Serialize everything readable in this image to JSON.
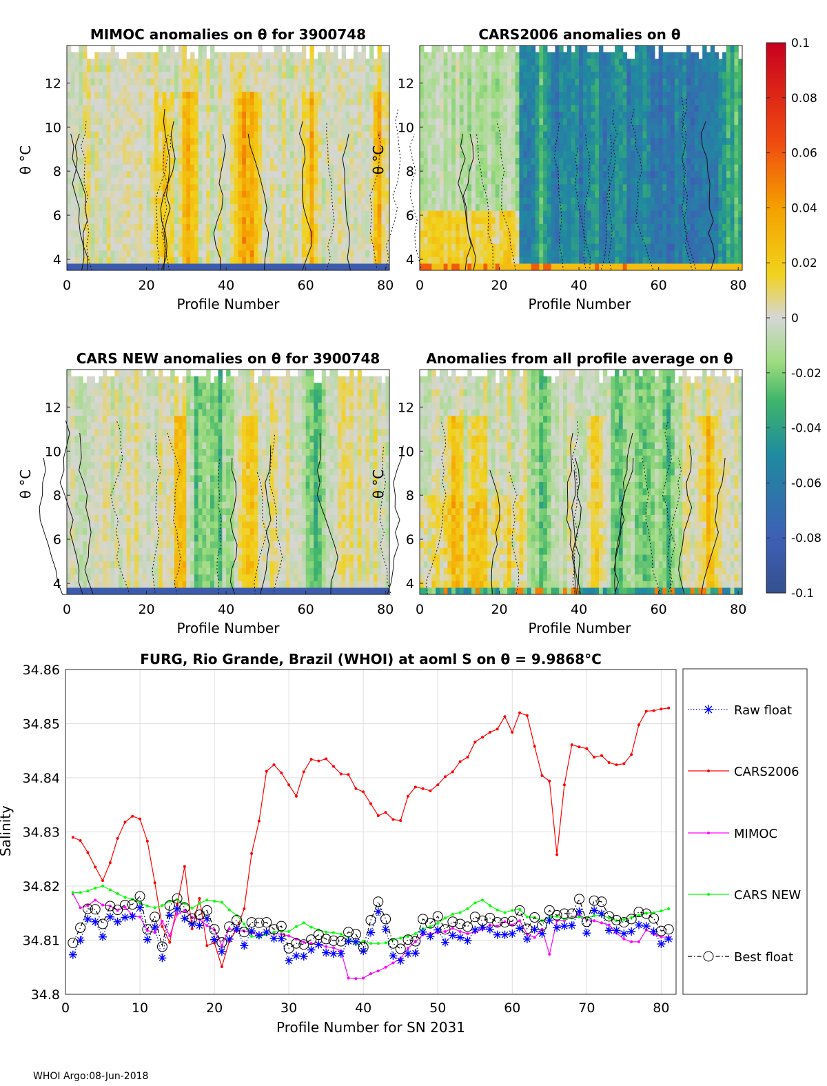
{
  "footer": "WHOI Argo:08-Jun-2018",
  "colorbar": {
    "ticks": [
      "0.1",
      "0.08",
      "0.06",
      "0.04",
      "0.02",
      "0",
      "-0.02",
      "-0.04",
      "-0.06",
      "-0.08",
      "-0.1"
    ],
    "range": [
      -0.1,
      0.1
    ],
    "colors": [
      "#c8001e",
      "#f04a10",
      "#f5a000",
      "#f1d21c",
      "#d6d6d6",
      "#9fdc7f",
      "#3fb56a",
      "#1f8aa0",
      "#3e5fb5",
      "#34508f"
    ]
  },
  "chart_data": [
    {
      "type": "heatmap",
      "title": "MIMOC anomalies on θ  for 3900748",
      "xlabel": "Profile Number",
      "ylabel": "θ °C",
      "xlim": [
        0,
        81
      ],
      "ylim": [
        3.5,
        13.7
      ],
      "xticks": [
        "0",
        "20",
        "40",
        "60",
        "80"
      ],
      "yticks": [
        "4",
        "6",
        "8",
        "10",
        "12"
      ],
      "seed": 11,
      "bias": 0.1,
      "green_cols": [],
      "yellow_cols": [
        24,
        30,
        44,
        46,
        61,
        78
      ],
      "bottom_band": "blue"
    },
    {
      "type": "heatmap",
      "title": "CARS2006 anomalies on θ",
      "xlabel": "Profile Number",
      "ylabel": "θ °C",
      "xlim": [
        0,
        81
      ],
      "ylim": [
        3.5,
        13.7
      ],
      "xticks": [
        "0",
        "20",
        "40",
        "60",
        "80"
      ],
      "yticks": [
        "4",
        "6",
        "8",
        "10",
        "12"
      ],
      "seed": 23,
      "bias": -0.4,
      "green_cols": [
        26,
        34,
        40,
        46,
        52,
        58,
        62,
        66,
        70,
        74
      ],
      "yellow_cols": [],
      "bottom_band": "yellow"
    },
    {
      "type": "heatmap",
      "title": "CARS NEW anomalies on θ for 3900748",
      "xlabel": "Profile Number",
      "ylabel": "θ °C",
      "xlim": [
        0,
        81
      ],
      "ylim": [
        3.5,
        13.7
      ],
      "xticks": [
        "0",
        "20",
        "40",
        "60",
        "80"
      ],
      "yticks": [
        "4",
        "6",
        "8",
        "10",
        "12"
      ],
      "seed": 37,
      "bias": 0.05,
      "green_cols": [
        33,
        38,
        62
      ],
      "yellow_cols": [
        28,
        45
      ],
      "bottom_band": "blue"
    },
    {
      "type": "heatmap",
      "title": "Anomalies from all profile average on θ",
      "xlabel": "Profile Number",
      "ylabel": "θ °C",
      "xlim": [
        0,
        81
      ],
      "ylim": [
        3.5,
        13.7
      ],
      "xticks": [
        "0",
        "20",
        "40",
        "60",
        "80"
      ],
      "yticks": [
        "4",
        "6",
        "8",
        "10",
        "12"
      ],
      "seed": 53,
      "bias": 0.0,
      "green_cols": [
        30,
        50,
        56,
        62
      ],
      "yellow_cols": [
        8,
        14,
        44,
        72
      ],
      "bottom_band": "mixed"
    },
    {
      "type": "line",
      "title": "FURG, Rio Grande, Brazil (WHOI) at aoml S on θ = 9.9868°C",
      "xlabel": "Profile Number for SN 2031",
      "ylabel": "Salinity",
      "xlim": [
        0,
        82
      ],
      "ylim": [
        34.8,
        34.86
      ],
      "xticks": [
        "0",
        "10",
        "20",
        "30",
        "40",
        "50",
        "60",
        "70",
        "80"
      ],
      "yticks": [
        "34.8",
        "34.81",
        "34.82",
        "34.83",
        "34.84",
        "34.85",
        "34.86"
      ],
      "x": [
        1,
        2,
        3,
        4,
        5,
        6,
        7,
        8,
        9,
        10,
        11,
        12,
        13,
        14,
        15,
        16,
        17,
        18,
        19,
        20,
        21,
        22,
        23,
        24,
        25,
        26,
        27,
        28,
        29,
        30,
        31,
        32,
        33,
        34,
        35,
        36,
        37,
        38,
        39,
        40,
        41,
        42,
        43,
        44,
        45,
        46,
        47,
        48,
        49,
        50,
        51,
        52,
        53,
        54,
        55,
        56,
        57,
        58,
        59,
        60,
        61,
        62,
        63,
        64,
        65,
        66,
        67,
        68,
        69,
        70,
        71,
        72,
        73,
        74,
        75,
        76,
        77,
        78,
        79,
        80,
        81
      ],
      "series": [
        {
          "name": "Raw float",
          "color": "#0000ff",
          "marker": "star",
          "style": "dotted",
          "values": [
            34.8073,
            34.81,
            34.8139,
            34.8134,
            34.8106,
            34.8143,
            34.8134,
            34.8142,
            34.8144,
            34.816,
            34.8101,
            34.8124,
            34.8067,
            34.8146,
            34.8158,
            34.814,
            34.813,
            34.8127,
            34.814,
            34.8101,
            34.8079,
            34.8102,
            34.8121,
            34.809,
            34.8117,
            34.8109,
            34.8115,
            34.8103,
            34.8103,
            34.8062,
            34.8071,
            34.807,
            34.8082,
            34.8092,
            34.8077,
            34.8075,
            34.8075,
            34.8098,
            34.8097,
            34.808,
            34.8114,
            34.8153,
            34.812,
            34.8071,
            34.8062,
            34.8075,
            34.8076,
            34.8115,
            34.8107,
            34.8119,
            34.8096,
            34.8109,
            34.8105,
            34.8099,
            34.8119,
            34.8124,
            34.812,
            34.811,
            34.811,
            34.8112,
            34.8122,
            34.8102,
            34.812,
            34.8112,
            34.8137,
            34.8123,
            34.8126,
            34.8127,
            34.8153,
            34.8113,
            34.8155,
            34.8149,
            34.8118,
            34.8118,
            34.8112,
            34.8116,
            34.8128,
            34.8126,
            34.8116,
            34.8093,
            34.8102
          ]
        },
        {
          "name": "CARS2006",
          "color": "#ff0000",
          "marker": "dot",
          "style": "solid",
          "values": [
            34.829,
            34.8284,
            34.8262,
            34.8235,
            34.821,
            34.8243,
            34.8288,
            34.8318,
            34.8329,
            34.8324,
            34.8283,
            34.8206,
            34.8125,
            34.8096,
            34.8165,
            34.8236,
            34.8121,
            34.8177,
            34.809,
            34.8095,
            34.8051,
            34.8098,
            34.812,
            34.8158,
            34.826,
            34.832,
            34.8412,
            34.8424,
            34.8409,
            34.8387,
            34.8366,
            34.8411,
            34.8434,
            34.8431,
            34.8435,
            34.8421,
            34.8407,
            34.8406,
            34.838,
            34.8374,
            34.8352,
            34.833,
            34.8336,
            34.8323,
            34.8321,
            34.8366,
            34.8383,
            34.838,
            34.8376,
            34.8387,
            34.8402,
            34.8411,
            34.843,
            34.8438,
            34.8466,
            34.8475,
            34.8484,
            34.849,
            34.8513,
            34.8484,
            34.852,
            34.8515,
            34.8458,
            34.8404,
            34.8394,
            34.8258,
            34.8387,
            34.8461,
            34.8457,
            34.8454,
            34.8438,
            34.8441,
            34.8428,
            34.8424,
            34.8426,
            34.8443,
            34.8498,
            34.8523,
            34.8524,
            34.8527,
            34.8529
          ]
        },
        {
          "name": "MIMOC",
          "color": "#ff00ff",
          "marker": "dot",
          "style": "solid",
          "values": [
            34.8186,
            34.816,
            34.8164,
            34.8174,
            34.8165,
            34.8163,
            34.8155,
            34.8161,
            34.8146,
            34.8143,
            34.8118,
            34.8114,
            34.8135,
            34.8108,
            34.8148,
            34.8155,
            34.8142,
            34.8138,
            34.8127,
            34.8119,
            34.809,
            34.8121,
            34.8117,
            34.8117,
            34.8113,
            34.811,
            34.8111,
            34.8112,
            34.8111,
            34.8108,
            34.8102,
            34.8096,
            34.8094,
            34.8092,
            34.8088,
            34.8086,
            34.808,
            34.803,
            34.8029,
            34.803,
            34.8038,
            34.8043,
            34.805,
            34.8058,
            34.8066,
            34.8085,
            34.8097,
            34.811,
            34.8112,
            34.8114,
            34.8116,
            34.8122,
            34.8116,
            34.8112,
            34.8115,
            34.812,
            34.8128,
            34.8126,
            34.8134,
            34.8128,
            34.8136,
            34.8111,
            34.8105,
            34.812,
            34.8074,
            34.8136,
            34.8136,
            34.8143,
            34.8147,
            34.8138,
            34.8136,
            34.8132,
            34.8128,
            34.8113,
            34.8102,
            34.8097,
            34.8097,
            34.8119,
            34.8111,
            34.8106,
            34.8105
          ]
        },
        {
          "name": "CARS NEW",
          "color": "#00ff00",
          "marker": "dot",
          "style": "solid",
          "values": [
            34.8188,
            34.8188,
            34.8191,
            34.8196,
            34.82,
            34.8193,
            34.8186,
            34.8179,
            34.8176,
            34.8169,
            34.8163,
            34.816,
            34.8164,
            34.8172,
            34.8175,
            34.8168,
            34.8159,
            34.8168,
            34.8174,
            34.8172,
            34.817,
            34.8156,
            34.8146,
            34.813,
            34.8107,
            34.8106,
            34.811,
            34.8115,
            34.8116,
            34.8116,
            34.8125,
            34.8132,
            34.8124,
            34.8119,
            34.8115,
            34.8114,
            34.8111,
            34.8105,
            34.8093,
            34.8098,
            34.8094,
            34.8094,
            34.8095,
            34.8101,
            34.8104,
            34.8107,
            34.8112,
            34.8121,
            34.8125,
            34.8131,
            34.8141,
            34.8148,
            34.8151,
            34.8158,
            34.8169,
            34.8174,
            34.8164,
            34.8156,
            34.8151,
            34.8155,
            34.8157,
            34.8143,
            34.8142,
            34.8136,
            34.8143,
            34.8144,
            34.8139,
            34.8141,
            34.8143,
            34.8141,
            34.8145,
            34.8146,
            34.8141,
            34.8136,
            34.8138,
            34.8142,
            34.8146,
            34.815,
            34.8151,
            34.8154,
            34.8158
          ]
        },
        {
          "name": "Best float",
          "color": "#000000",
          "marker": "circle",
          "style": "dashdot",
          "values": [
            34.8095,
            34.8123,
            34.8158,
            34.8157,
            34.813,
            34.8163,
            34.8156,
            34.8165,
            34.8166,
            34.8181,
            34.812,
            34.8143,
            34.8088,
            34.8164,
            34.8177,
            34.816,
            34.814,
            34.8147,
            34.8155,
            34.812,
            34.8096,
            34.8125,
            34.8137,
            34.8115,
            34.8133,
            34.8132,
            34.8133,
            34.812,
            34.8126,
            34.8085,
            34.8094,
            34.8092,
            34.8101,
            34.811,
            34.8102,
            34.8099,
            34.8098,
            34.8115,
            34.8111,
            34.8087,
            34.8137,
            34.8171,
            34.8139,
            34.8094,
            34.8084,
            34.8101,
            34.8098,
            34.8139,
            34.8131,
            34.8144,
            34.812,
            34.8134,
            34.813,
            34.8125,
            34.8143,
            34.8136,
            34.8141,
            34.8133,
            34.8133,
            34.8135,
            34.8155,
            34.8121,
            34.8142,
            34.8127,
            34.8155,
            34.8146,
            34.8149,
            34.8149,
            34.8176,
            34.8134,
            34.8173,
            34.8171,
            34.8144,
            34.8137,
            34.8133,
            34.8139,
            34.8152,
            34.8149,
            34.814,
            34.8117,
            34.812
          ]
        }
      ]
    }
  ]
}
